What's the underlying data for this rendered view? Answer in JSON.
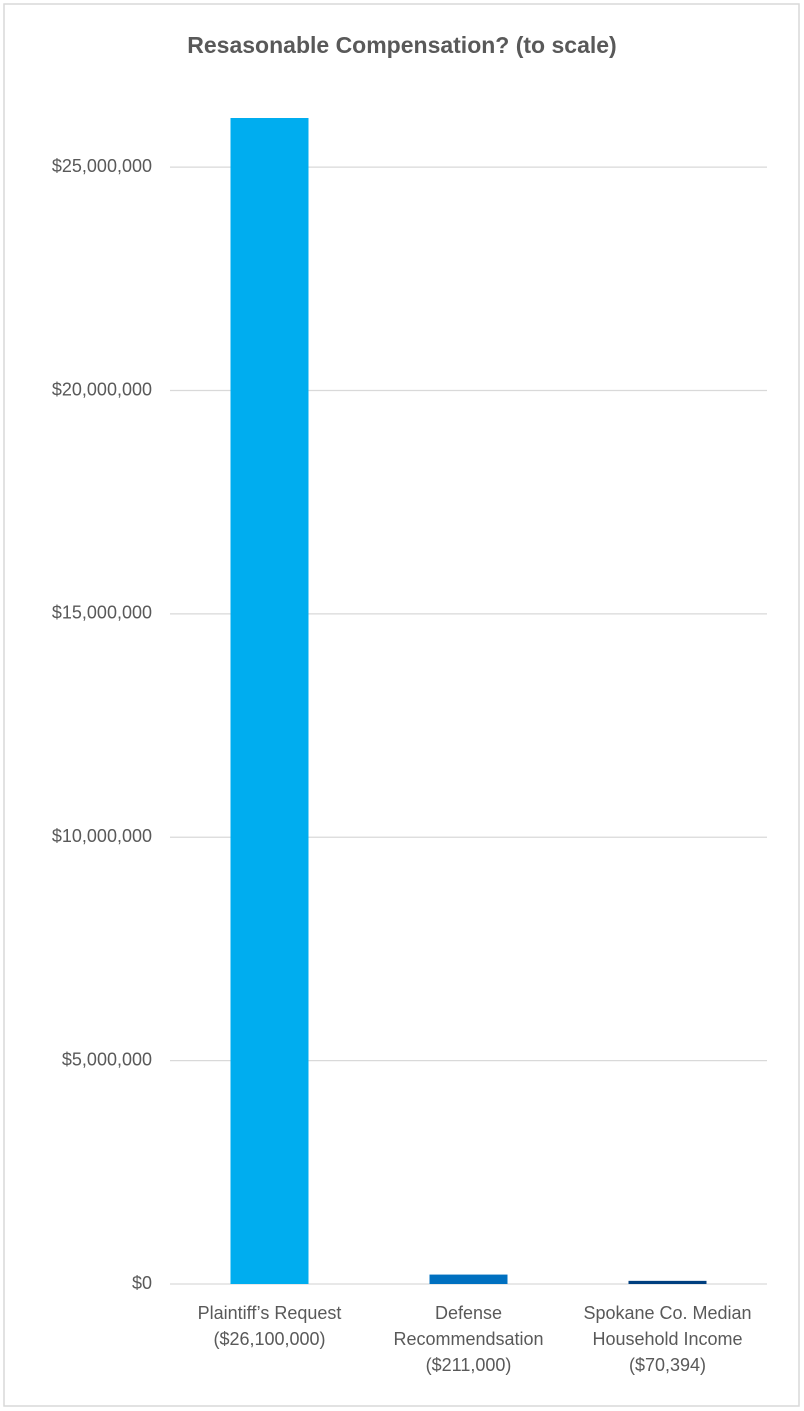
{
  "chart_data": {
    "type": "bar",
    "title": "Resasonable Compensation? (to scale)",
    "categories": [
      [
        "Plaintiff’s Request",
        "($26,100,000)"
      ],
      [
        "Defense",
        "Recommendsation",
        "($211,000)"
      ],
      [
        "Spokane Co. Median",
        "Household Income",
        "($70,394)"
      ]
    ],
    "values": [
      26100000,
      211000,
      70394
    ],
    "colors": [
      "#00adef",
      "#0070c0",
      "#003f7f"
    ],
    "ylim": [
      0,
      26100000
    ],
    "yticks": [
      {
        "value": 0,
        "label": "$0"
      },
      {
        "value": 5000000,
        "label": "$5,000,000"
      },
      {
        "value": 10000000,
        "label": "$10,000,000"
      },
      {
        "value": 15000000,
        "label": "$15,000,000"
      },
      {
        "value": 20000000,
        "label": "$20,000,000"
      },
      {
        "value": 25000000,
        "label": "$25,000,000"
      }
    ],
    "grid": true
  }
}
